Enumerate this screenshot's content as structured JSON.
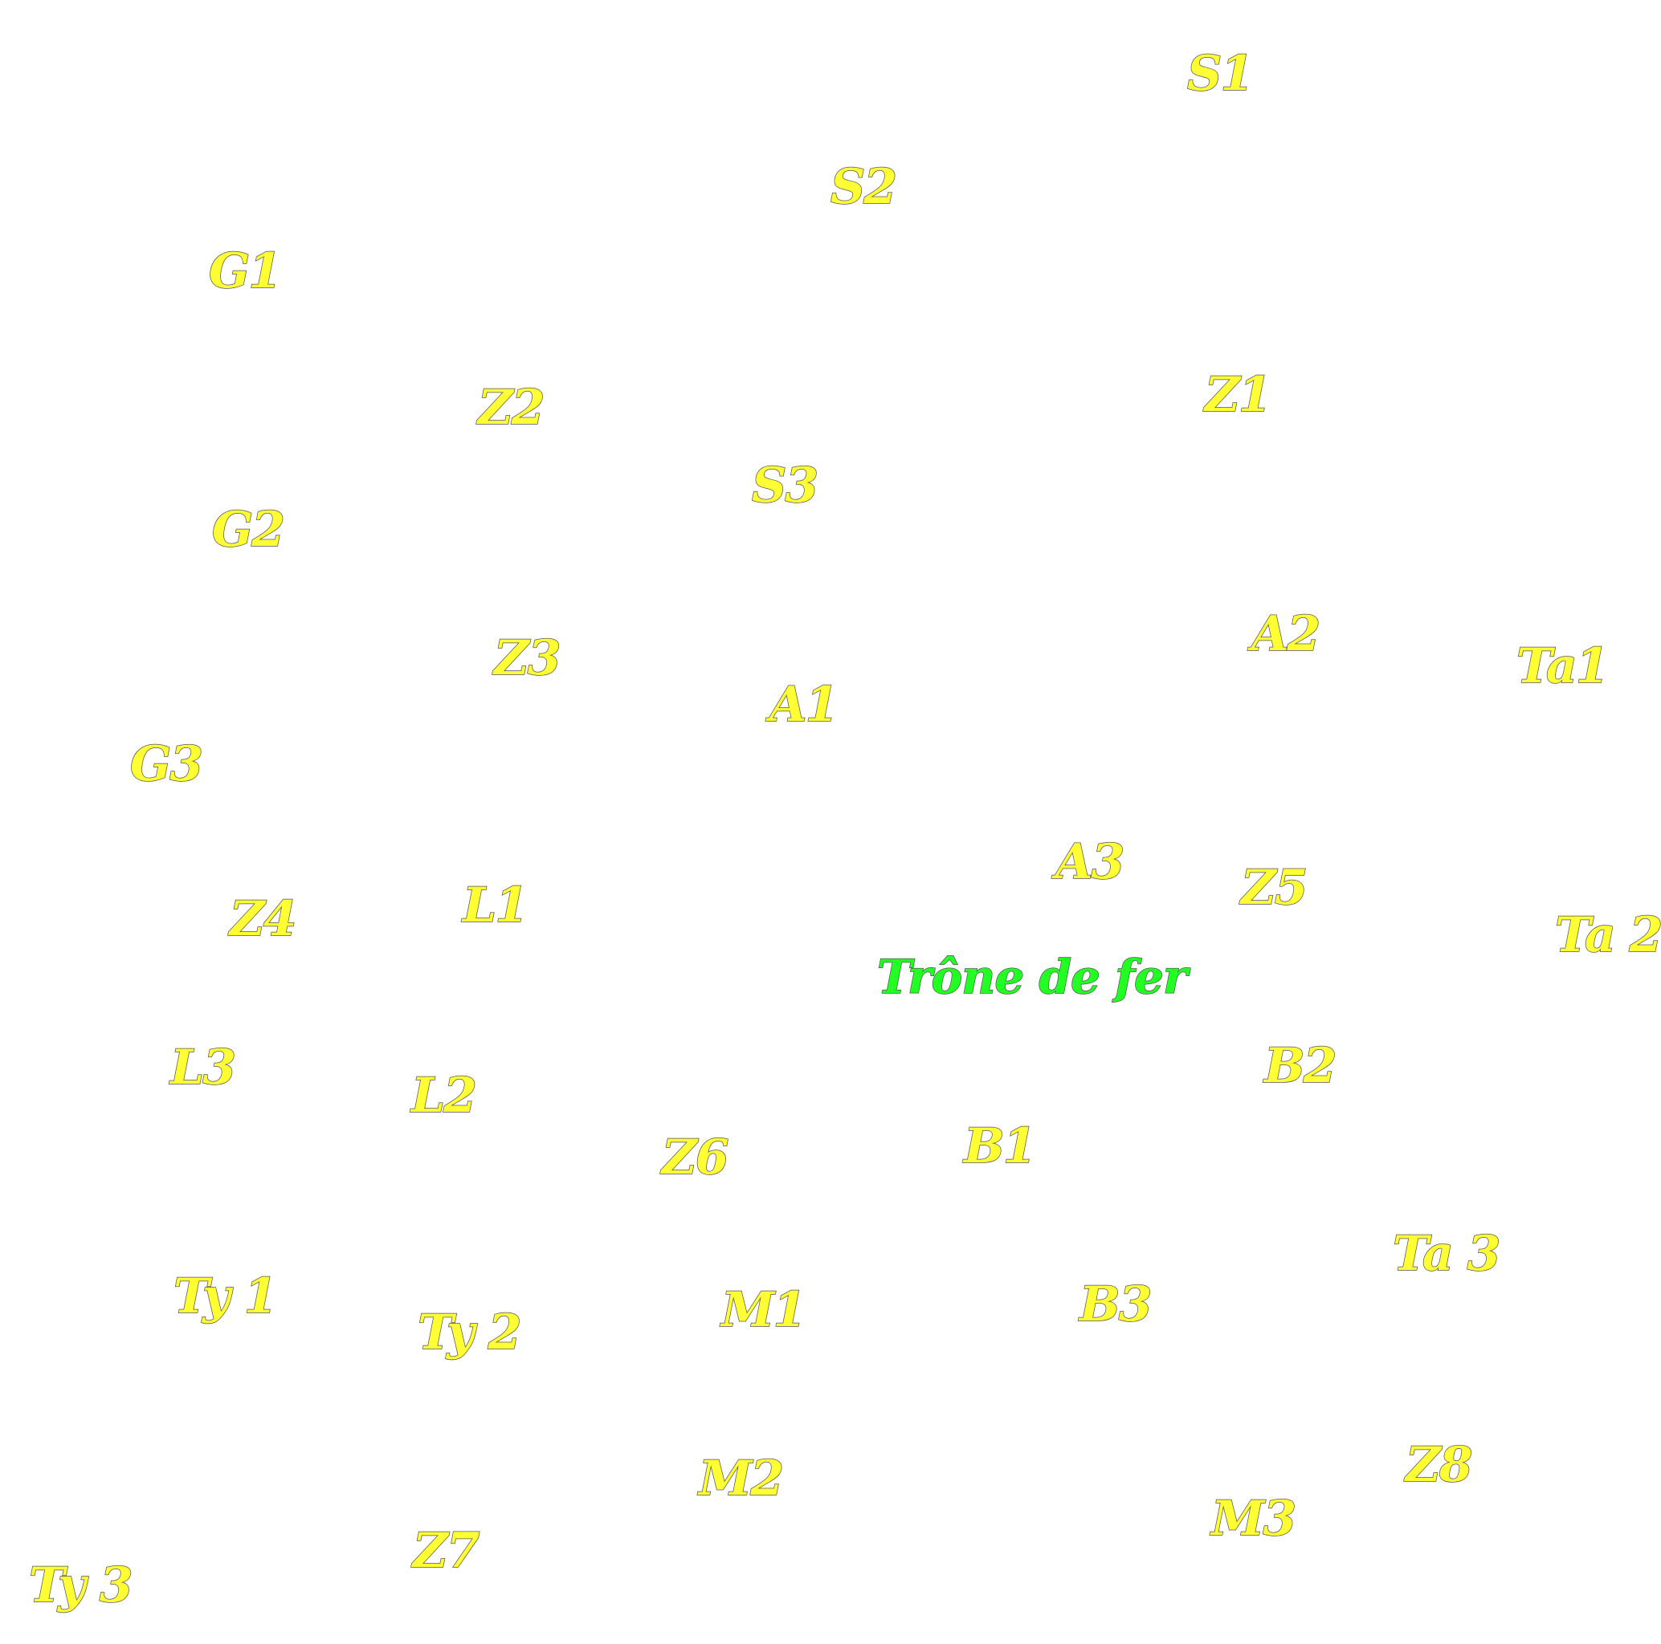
{
  "colors": {
    "background": "#ffffff",
    "label_fill": "#ffff33",
    "center_fill": "#22ff22",
    "outline": "#555555"
  },
  "center_label": "Trône de fer",
  "labels": {
    "S1": "S1",
    "S2": "S2",
    "S3": "S3",
    "G1": "G1",
    "G2": "G2",
    "G3": "G3",
    "Z1": "Z1",
    "Z2": "Z2",
    "Z3": "Z3",
    "Z4": "Z4",
    "Z5": "Z5",
    "Z6": "Z6",
    "Z7": "Z7",
    "Z8": "Z8",
    "A1": "A1",
    "A2": "A2",
    "A3": "A3",
    "Ta1": "Ta1",
    "Ta2": "Ta 2",
    "Ta3": "Ta 3",
    "L1": "L1",
    "L2": "L2",
    "L3": "L3",
    "B1": "B1",
    "B2": "B2",
    "B3": "B3",
    "Ty1": "Ty 1",
    "Ty2": "Ty 2",
    "Ty3": "Ty 3",
    "M1": "M1",
    "M2": "M2",
    "M3": "M3"
  }
}
